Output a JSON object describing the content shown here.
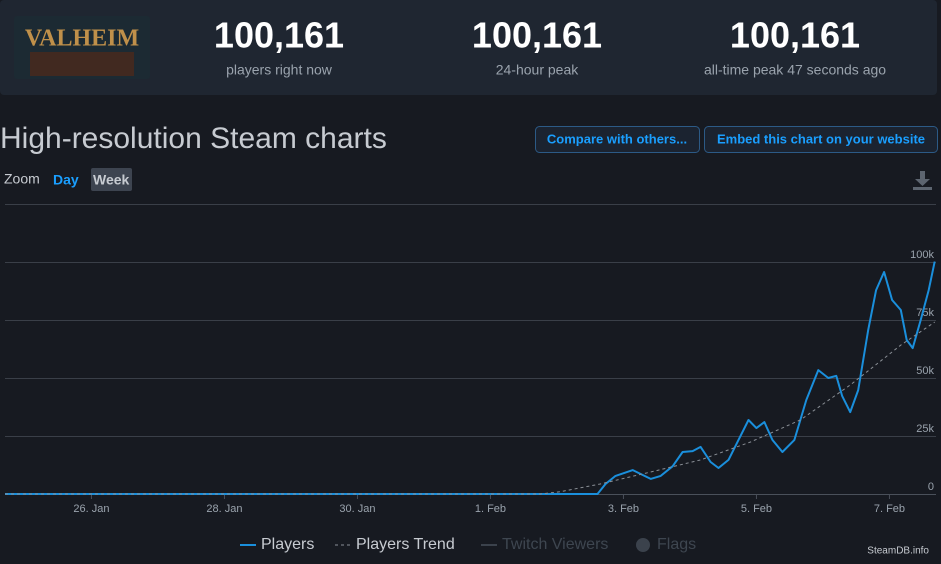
{
  "header": {
    "game_logo": "VALHEIM",
    "stats": [
      {
        "value": "100,161",
        "label": "players right now"
      },
      {
        "value": "100,161",
        "label": "24-hour peak"
      },
      {
        "value": "100,161",
        "label": "all-time peak 47 seconds ago"
      }
    ]
  },
  "section_title": "High-resolution Steam charts",
  "buttons": [
    "Compare with others...",
    "Embed this chart on your website"
  ],
  "zoom": {
    "label": "Zoom",
    "options": [
      "Day",
      "Week"
    ]
  },
  "credit": "SteamDB.info",
  "chart_data": {
    "type": "line",
    "series": [
      {
        "name": "Players",
        "color": "#1a8fdc",
        "x": [
          24.7,
          33.61,
          33.73,
          33.88,
          34.14,
          34.26,
          34.41,
          34.56,
          34.74,
          34.89,
          35.04,
          35.16,
          35.31,
          35.43,
          35.58,
          35.73,
          35.88,
          36.0,
          36.12,
          36.24,
          36.39,
          36.57,
          36.75,
          36.93,
          37.08,
          37.2,
          37.29,
          37.41,
          37.53,
          37.68,
          37.8,
          37.92,
          38.04,
          38.17,
          38.26,
          38.35,
          38.47,
          38.59,
          38.68
        ],
        "values": [
          0,
          0,
          4300,
          7800,
          10300,
          8600,
          6500,
          7800,
          12000,
          18100,
          18500,
          20300,
          13800,
          11200,
          14700,
          23300,
          31900,
          28400,
          31000,
          23300,
          18100,
          23300,
          40500,
          53400,
          50000,
          50900,
          42200,
          35300,
          44800,
          70700,
          87900,
          95700,
          83600,
          79300,
          66400,
          62900,
          75000,
          87900,
          100161
        ]
      },
      {
        "name": "Players Trend",
        "color": "#8a8f96",
        "dashed": true,
        "x": [
          24.7,
          32.75,
          33.05,
          33.65,
          34.41,
          35.16,
          35.91,
          36.66,
          37.41,
          38.17,
          38.68
        ],
        "values": [
          0,
          0,
          1000,
          4300,
          9500,
          14700,
          22400,
          31900,
          47000,
          64200,
          74100
        ]
      },
      {
        "name": "Twitch Viewers",
        "color": "#3b424c",
        "hidden": true
      },
      {
        "name": "Flags",
        "color": "#3b424c",
        "hidden": true,
        "marker": "circle"
      }
    ],
    "xlim": [
      24.7,
      38.7
    ],
    "xticks": [
      {
        "value": 26,
        "label": "26. Jan"
      },
      {
        "value": 28,
        "label": "28. Jan"
      },
      {
        "value": 30,
        "label": "30. Jan"
      },
      {
        "value": 32,
        "label": "1. Feb"
      },
      {
        "value": 34,
        "label": "3. Feb"
      },
      {
        "value": 36,
        "label": "5. Feb"
      },
      {
        "value": 38,
        "label": "7. Feb"
      }
    ],
    "ylim": [
      0,
      125000
    ],
    "yticks": [
      0,
      {
        "value": 25000,
        "label": "25k"
      },
      {
        "value": 50000,
        "label": "50k"
      },
      {
        "value": 75000,
        "label": "75k"
      },
      {
        "value": 100000,
        "label": "100k"
      }
    ],
    "grid": true
  }
}
